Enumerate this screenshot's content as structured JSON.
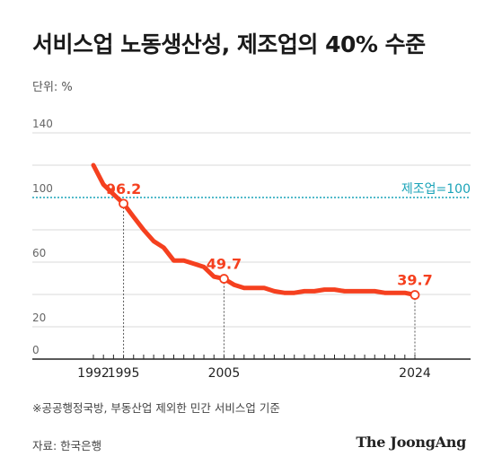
{
  "title": "서비스업 노동생산성, 제조업의 40% 수준",
  "unit_label": "단위: %",
  "footnote": "※공공행정국방, 부동산업 제외한 민간 서비스업 기준",
  "source": "자료: 한국은행",
  "logo": "The JoongAng",
  "colors": {
    "line": "#f5401f",
    "reference": "#1aa3b8",
    "label": "#f5401f",
    "grid": "#d9d9d9"
  },
  "chart_data": {
    "type": "line",
    "title": "서비스업 노동생산성, 제조업의 40% 수준",
    "ylabel": "단위: %",
    "ylim": [
      0,
      140
    ],
    "y_ticks": [
      "0",
      "20",
      "60",
      "100",
      "140"
    ],
    "x_ticks": [
      "1992",
      "1995",
      "2005",
      "2024"
    ],
    "reference_line": {
      "value": 100,
      "label": "제조업=100"
    },
    "grid": true,
    "series": [
      {
        "x": [
          1992,
          1993,
          1994,
          1995,
          1996,
          1997,
          1998,
          1999,
          2000,
          2001,
          2002,
          2003,
          2004,
          2005,
          2006,
          2007,
          2008,
          2009,
          2010,
          2011,
          2012,
          2013,
          2014,
          2015,
          2016,
          2017,
          2018,
          2019,
          2020,
          2021,
          2022,
          2023,
          2024
        ],
        "values": [
          120,
          108,
          102,
          96.2,
          88,
          80,
          73,
          69,
          61,
          61,
          59,
          57,
          51,
          49.7,
          46,
          44,
          44,
          44,
          42,
          41,
          41,
          42,
          42,
          43,
          43,
          42,
          42,
          42,
          42,
          41,
          41,
          41,
          39.7
        ]
      }
    ],
    "annotations": [
      {
        "x": 1995,
        "value": 96.2,
        "label": "96.2"
      },
      {
        "x": 2005,
        "value": 49.7,
        "label": "49.7"
      },
      {
        "x": 2024,
        "value": 39.7,
        "label": "39.7"
      }
    ]
  }
}
